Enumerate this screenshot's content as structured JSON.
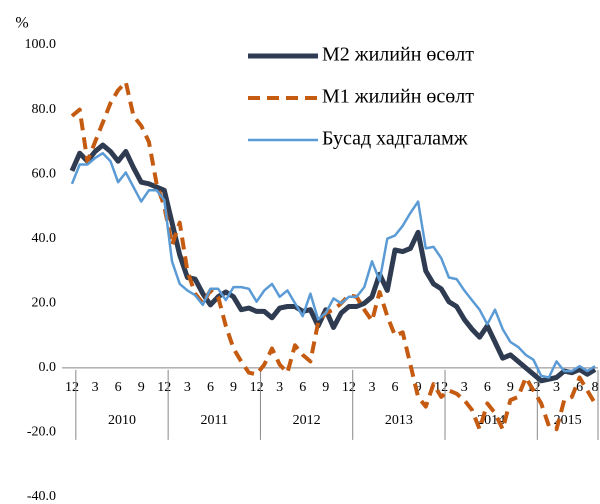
{
  "chart_data": {
    "type": "line",
    "y_label": "%",
    "categories": [
      "12",
      null,
      null,
      "3",
      null,
      null,
      "6",
      null,
      null,
      "9",
      null,
      null,
      "12",
      null,
      null,
      "3",
      null,
      null,
      "6",
      null,
      null,
      "9",
      null,
      null,
      "12",
      null,
      null,
      "3",
      null,
      null,
      "6",
      null,
      null,
      "9",
      null,
      null,
      "12",
      null,
      null,
      "3",
      null,
      null,
      "6",
      null,
      null,
      "9",
      null,
      null,
      "12",
      null,
      null,
      "3",
      null,
      null,
      "6",
      null,
      null,
      "9",
      null,
      null,
      "12",
      null,
      null,
      "3",
      null,
      null,
      "6",
      null,
      "8"
    ],
    "years": [
      "2010",
      "2011",
      "2012",
      "2013",
      "2014",
      "2015"
    ],
    "series": [
      {
        "name": "M2 жилийн өсөлт",
        "color": "#2e3b50",
        "style": "solid",
        "values": [
          61,
          66.5,
          64,
          67,
          69,
          67,
          64,
          67,
          62,
          57.5,
          57,
          56,
          55,
          45,
          35,
          28,
          27.5,
          23,
          19.5,
          22,
          23.5,
          22,
          18,
          18.5,
          17.5,
          17.5,
          15.5,
          18.5,
          19,
          19,
          17.5,
          18,
          13,
          18,
          12.5,
          17,
          19,
          19,
          20,
          22,
          29,
          24,
          36.5,
          36,
          37,
          42,
          30,
          26,
          24.5,
          20.5,
          19,
          15,
          12,
          9.5,
          13,
          8,
          3,
          4,
          2,
          0,
          -2,
          -4,
          -3.5,
          -3,
          -1,
          -1.5,
          -0.5,
          -2,
          -0.5
        ]
      },
      {
        "name": "M1 жилийн өсөлт",
        "color": "#c55a11",
        "style": "dashed",
        "values": [
          78,
          80,
          64,
          70,
          76,
          82,
          86,
          88.5,
          78,
          75,
          70,
          57,
          50,
          38,
          45,
          30,
          23,
          20,
          24,
          22,
          13,
          6,
          2,
          -1.5,
          -2,
          1,
          6,
          1,
          -1.5,
          7,
          4,
          2,
          14,
          17,
          18,
          20,
          22.5,
          22,
          18,
          14.5,
          23.5,
          16,
          10,
          11,
          1,
          -9,
          -12,
          -5,
          -9,
          -7,
          -8,
          -10,
          -13,
          -19,
          -11,
          -14,
          -19,
          -10,
          -9,
          -3,
          -7,
          -11,
          -18,
          -19,
          -10,
          -9,
          -3,
          -7,
          -11
        ]
      },
      {
        "name": "Бусад  хадгаламж",
        "color": "#5b9bd5",
        "style": "thin",
        "values": [
          57,
          63,
          63,
          65,
          66.5,
          64,
          57.5,
          60.5,
          56,
          51.5,
          55,
          55,
          52,
          33,
          26,
          24,
          22.5,
          19.5,
          24.5,
          24.5,
          21,
          25,
          25,
          24.5,
          20.5,
          24,
          26,
          22,
          24,
          20,
          16,
          23,
          15,
          17,
          21.5,
          20,
          22,
          22,
          25,
          33,
          27,
          40,
          41,
          44,
          48,
          51.5,
          37,
          37.5,
          34,
          28,
          27.5,
          24,
          21,
          18,
          13.5,
          18,
          12,
          8,
          6.5,
          4,
          2.5,
          -2.5,
          -3,
          2,
          -1,
          -1,
          0.5,
          -1,
          0.5
        ]
      }
    ],
    "ylim": [
      -40,
      100
    ],
    "yticks": [
      {
        "value": -40,
        "label": "-40.0"
      },
      {
        "value": -20,
        "label": "-20.0"
      },
      {
        "value": 0,
        "label": "0.0"
      },
      {
        "value": 20,
        "label": "20.0"
      },
      {
        "value": 40,
        "label": "40.0"
      },
      {
        "value": 60,
        "label": "60.0"
      },
      {
        "value": 80,
        "label": "80.0"
      },
      {
        "value": 100,
        "label": "100.0"
      }
    ],
    "legend": "upper right"
  }
}
